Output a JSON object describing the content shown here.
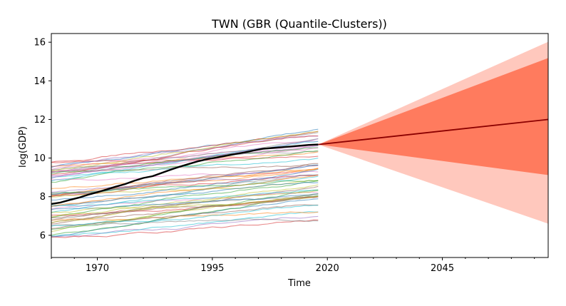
{
  "chart_data": {
    "type": "line",
    "title": "TWN (GBR (Quantile-Clusters))",
    "xlabel": "Time",
    "ylabel": "log(GDP)",
    "xlim": [
      1960,
      2068
    ],
    "ylim": [
      4.85,
      16.45
    ],
    "x_ticks": [
      1970,
      1995,
      2020,
      2045
    ],
    "x_tick_labels": [
      "1970",
      "1995",
      "2020",
      "2045"
    ],
    "y_ticks": [
      6,
      8,
      10,
      12,
      14,
      16
    ],
    "y_tick_labels": [
      "6",
      "8",
      "10",
      "12",
      "14",
      "16"
    ],
    "grid": false,
    "legend": "none",
    "background_series_count": 60,
    "background_series_range_x": [
      1960,
      2018
    ],
    "target_series": {
      "x": [
        1960,
        1962,
        1964,
        1966,
        1968,
        1970,
        1972,
        1974,
        1976,
        1978,
        1980,
        1982,
        1984,
        1986,
        1988,
        1990,
        1992,
        1994,
        1996,
        1998,
        2000,
        2002,
        2004,
        2006,
        2008,
        2010,
        2012,
        2014,
        2016,
        2018
      ],
      "y": [
        7.62,
        7.7,
        7.83,
        7.95,
        8.1,
        8.23,
        8.37,
        8.52,
        8.65,
        8.82,
        8.97,
        9.06,
        9.23,
        9.4,
        9.56,
        9.7,
        9.84,
        9.95,
        10.03,
        10.12,
        10.21,
        10.29,
        10.39,
        10.48,
        10.52,
        10.56,
        10.6,
        10.64,
        10.68,
        10.7
      ],
      "color": "#000000"
    },
    "forecast": {
      "x": [
        2018,
        2068
      ],
      "median": [
        10.7,
        12.0
      ],
      "inner_lower": [
        10.7,
        9.12
      ],
      "inner_upper": [
        10.7,
        15.18
      ],
      "outer_lower": [
        10.7,
        6.6
      ],
      "outer_upper": [
        10.7,
        16.02
      ],
      "median_color": "#8b0000",
      "inner_color": "#ff7b5e",
      "outer_color": "#ffc8bd"
    }
  }
}
